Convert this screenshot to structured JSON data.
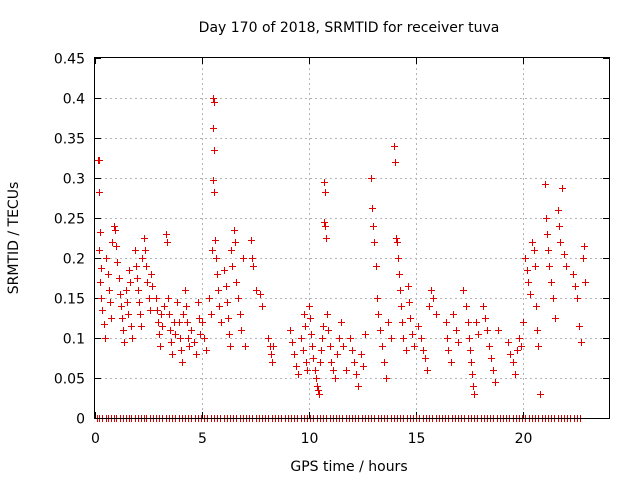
{
  "chart_data": {
    "type": "scatter",
    "title": "Day 170 of 2018, SRMTID for receiver tuva",
    "xlabel": "GPS time / hours",
    "ylabel": "SRMTID / TECUs",
    "xlim": [
      0,
      24
    ],
    "ylim": [
      0,
      0.45
    ],
    "xticks": [
      "0",
      "5",
      "10",
      "15",
      "20"
    ],
    "yticks": [
      "0",
      "0.05",
      "0.1",
      "0.15",
      "0.2",
      "0.25",
      "0.3",
      "0.35",
      "0.4",
      "0.45"
    ],
    "grid": true,
    "marker": "+",
    "color": "#e00000",
    "series": [
      {
        "points": [
          [
            0.15,
            0.323
          ],
          [
            0.2,
            0.323
          ],
          [
            0.2,
            0.282
          ],
          [
            0.25,
            0.232
          ],
          [
            0.2,
            0.21
          ],
          [
            0.3,
            0.188
          ],
          [
            0.25,
            0.17
          ],
          [
            0.3,
            0.15
          ],
          [
            0.35,
            0.135
          ],
          [
            0.4,
            0.118
          ],
          [
            0.45,
            0.1
          ],
          [
            0.5,
            0.2
          ],
          [
            0.6,
            0.18
          ],
          [
            0.65,
            0.16
          ],
          [
            0.7,
            0.145
          ],
          [
            0.75,
            0.125
          ],
          [
            0.8,
            0.22
          ],
          [
            0.9,
            0.24
          ],
          [
            0.95,
            0.235
          ],
          [
            1.0,
            0.215
          ],
          [
            1.05,
            0.195
          ],
          [
            1.1,
            0.175
          ],
          [
            1.15,
            0.155
          ],
          [
            1.2,
            0.14
          ],
          [
            1.25,
            0.125
          ],
          [
            1.3,
            0.11
          ],
          [
            1.35,
            0.095
          ],
          [
            1.45,
            0.16
          ],
          [
            1.5,
            0.145
          ],
          [
            1.55,
            0.13
          ],
          [
            1.6,
            0.185
          ],
          [
            1.65,
            0.17
          ],
          [
            1.7,
            0.115
          ],
          [
            1.75,
            0.1
          ],
          [
            1.85,
            0.21
          ],
          [
            1.9,
            0.19
          ],
          [
            1.95,
            0.175
          ],
          [
            2.0,
            0.16
          ],
          [
            2.05,
            0.145
          ],
          [
            2.1,
            0.13
          ],
          [
            2.15,
            0.115
          ],
          [
            2.2,
            0.2
          ],
          [
            2.3,
            0.225
          ],
          [
            2.35,
            0.21
          ],
          [
            2.4,
            0.19
          ],
          [
            2.45,
            0.17
          ],
          [
            2.5,
            0.15
          ],
          [
            2.55,
            0.135
          ],
          [
            2.6,
            0.18
          ],
          [
            2.65,
            0.165
          ],
          [
            2.85,
            0.15
          ],
          [
            2.9,
            0.135
          ],
          [
            2.95,
            0.12
          ],
          [
            3.0,
            0.105
          ],
          [
            3.05,
            0.09
          ],
          [
            3.1,
            0.13
          ],
          [
            3.15,
            0.115
          ],
          [
            3.2,
            0.14
          ],
          [
            3.3,
            0.23
          ],
          [
            3.35,
            0.22
          ],
          [
            3.4,
            0.15
          ],
          [
            3.45,
            0.13
          ],
          [
            3.5,
            0.11
          ],
          [
            3.55,
            0.095
          ],
          [
            3.6,
            0.08
          ],
          [
            3.7,
            0.12
          ],
          [
            3.75,
            0.105
          ],
          [
            3.85,
            0.145
          ],
          [
            3.9,
            0.12
          ],
          [
            3.95,
            0.1
          ],
          [
            4.0,
            0.085
          ],
          [
            4.05,
            0.07
          ],
          [
            4.1,
            0.13
          ],
          [
            4.2,
            0.16
          ],
          [
            4.25,
            0.14
          ],
          [
            4.3,
            0.12
          ],
          [
            4.35,
            0.1
          ],
          [
            4.4,
            0.09
          ],
          [
            4.5,
            0.11
          ],
          [
            4.6,
            0.095
          ],
          [
            4.7,
            0.08
          ],
          [
            4.8,
            0.145
          ],
          [
            4.85,
            0.125
          ],
          [
            4.9,
            0.105
          ],
          [
            5.0,
            0.12
          ],
          [
            5.1,
            0.1
          ],
          [
            5.2,
            0.085
          ],
          [
            5.3,
            0.15
          ],
          [
            5.4,
            0.13
          ],
          [
            5.45,
            0.21
          ],
          [
            5.5,
            0.4
          ],
          [
            5.55,
            0.395
          ],
          [
            5.5,
            0.362
          ],
          [
            5.55,
            0.335
          ],
          [
            5.5,
            0.298
          ],
          [
            5.55,
            0.283
          ],
          [
            5.6,
            0.222
          ],
          [
            5.65,
            0.2
          ],
          [
            5.7,
            0.18
          ],
          [
            5.75,
            0.16
          ],
          [
            5.8,
            0.14
          ],
          [
            5.9,
            0.12
          ],
          [
            6.0,
            0.185
          ],
          [
            6.1,
            0.165
          ],
          [
            6.15,
            0.145
          ],
          [
            6.2,
            0.125
          ],
          [
            6.25,
            0.105
          ],
          [
            6.3,
            0.09
          ],
          [
            6.35,
            0.21
          ],
          [
            6.4,
            0.19
          ],
          [
            6.5,
            0.235
          ],
          [
            6.55,
            0.22
          ],
          [
            6.6,
            0.17
          ],
          [
            6.7,
            0.15
          ],
          [
            6.75,
            0.13
          ],
          [
            6.8,
            0.11
          ],
          [
            6.9,
            0.2
          ],
          [
            7.0,
            0.09
          ],
          [
            7.3,
            0.222
          ],
          [
            7.35,
            0.2
          ],
          [
            7.4,
            0.19
          ],
          [
            7.5,
            0.16
          ],
          [
            7.7,
            0.155
          ],
          [
            7.8,
            0.14
          ],
          [
            8.1,
            0.1
          ],
          [
            8.15,
            0.09
          ],
          [
            8.2,
            0.08
          ],
          [
            8.25,
            0.07
          ],
          [
            8.3,
            0.09
          ],
          [
            9.1,
            0.11
          ],
          [
            9.2,
            0.095
          ],
          [
            9.3,
            0.08
          ],
          [
            9.4,
            0.065
          ],
          [
            9.5,
            0.055
          ],
          [
            9.6,
            0.1
          ],
          [
            9.7,
            0.085
          ],
          [
            9.75,
            0.13
          ],
          [
            9.8,
            0.115
          ],
          [
            9.85,
            0.07
          ],
          [
            9.9,
            0.06
          ],
          [
            10.0,
            0.14
          ],
          [
            10.05,
            0.125
          ],
          [
            10.1,
            0.105
          ],
          [
            10.15,
            0.09
          ],
          [
            10.2,
            0.075
          ],
          [
            10.25,
            0.06
          ],
          [
            10.3,
            0.05
          ],
          [
            10.35,
            0.04
          ],
          [
            10.4,
            0.035
          ],
          [
            10.45,
            0.03
          ],
          [
            10.5,
            0.07
          ],
          [
            10.55,
            0.085
          ],
          [
            10.6,
            0.1
          ],
          [
            10.65,
            0.115
          ],
          [
            10.7,
            0.295
          ],
          [
            10.75,
            0.283
          ],
          [
            10.7,
            0.245
          ],
          [
            10.75,
            0.24
          ],
          [
            10.8,
            0.225
          ],
          [
            10.85,
            0.13
          ],
          [
            10.9,
            0.11
          ],
          [
            10.95,
            0.09
          ],
          [
            11.0,
            0.07
          ],
          [
            11.1,
            0.06
          ],
          [
            11.2,
            0.05
          ],
          [
            11.3,
            0.08
          ],
          [
            11.4,
            0.1
          ],
          [
            11.5,
            0.12
          ],
          [
            11.6,
            0.09
          ],
          [
            11.7,
            0.06
          ],
          [
            11.9,
            0.1
          ],
          [
            12.0,
            0.085
          ],
          [
            12.1,
            0.07
          ],
          [
            12.2,
            0.055
          ],
          [
            12.3,
            0.04
          ],
          [
            12.4,
            0.08
          ],
          [
            12.5,
            0.065
          ],
          [
            12.6,
            0.105
          ],
          [
            12.9,
            0.3
          ],
          [
            12.95,
            0.262
          ],
          [
            13.0,
            0.24
          ],
          [
            13.05,
            0.22
          ],
          [
            13.1,
            0.19
          ],
          [
            13.15,
            0.15
          ],
          [
            13.2,
            0.13
          ],
          [
            13.3,
            0.11
          ],
          [
            13.4,
            0.09
          ],
          [
            13.5,
            0.07
          ],
          [
            13.6,
            0.05
          ],
          [
            13.7,
            0.12
          ],
          [
            13.8,
            0.1
          ],
          [
            13.95,
            0.34
          ],
          [
            14.0,
            0.32
          ],
          [
            14.05,
            0.225
          ],
          [
            14.1,
            0.22
          ],
          [
            14.15,
            0.2
          ],
          [
            14.2,
            0.18
          ],
          [
            14.25,
            0.16
          ],
          [
            14.3,
            0.14
          ],
          [
            14.35,
            0.12
          ],
          [
            14.4,
            0.1
          ],
          [
            14.5,
            0.085
          ],
          [
            14.6,
            0.165
          ],
          [
            14.65,
            0.145
          ],
          [
            14.7,
            0.125
          ],
          [
            14.8,
            0.105
          ],
          [
            14.9,
            0.09
          ],
          [
            15.1,
            0.115
          ],
          [
            15.2,
            0.1
          ],
          [
            15.3,
            0.085
          ],
          [
            15.4,
            0.075
          ],
          [
            15.5,
            0.06
          ],
          [
            15.6,
            0.14
          ],
          [
            15.7,
            0.16
          ],
          [
            15.8,
            0.15
          ],
          [
            15.9,
            0.13
          ],
          [
            16.4,
            0.12
          ],
          [
            16.45,
            0.1
          ],
          [
            16.5,
            0.085
          ],
          [
            16.6,
            0.07
          ],
          [
            16.7,
            0.13
          ],
          [
            16.85,
            0.11
          ],
          [
            16.95,
            0.095
          ],
          [
            17.2,
            0.16
          ],
          [
            17.3,
            0.14
          ],
          [
            17.4,
            0.12
          ],
          [
            17.45,
            0.1
          ],
          [
            17.5,
            0.085
          ],
          [
            17.55,
            0.07
          ],
          [
            17.6,
            0.055
          ],
          [
            17.65,
            0.04
          ],
          [
            17.7,
            0.03
          ],
          [
            17.8,
            0.12
          ],
          [
            17.9,
            0.105
          ],
          [
            18.1,
            0.14
          ],
          [
            18.2,
            0.125
          ],
          [
            18.3,
            0.11
          ],
          [
            18.4,
            0.09
          ],
          [
            18.5,
            0.075
          ],
          [
            18.6,
            0.06
          ],
          [
            18.7,
            0.045
          ],
          [
            18.8,
            0.11
          ],
          [
            19.3,
            0.095
          ],
          [
            19.4,
            0.08
          ],
          [
            19.5,
            0.07
          ],
          [
            19.6,
            0.055
          ],
          [
            19.7,
            0.085
          ],
          [
            19.8,
            0.1
          ],
          [
            19.9,
            0.09
          ],
          [
            20.0,
            0.12
          ],
          [
            20.1,
            0.2
          ],
          [
            20.15,
            0.185
          ],
          [
            20.2,
            0.17
          ],
          [
            20.3,
            0.155
          ],
          [
            20.4,
            0.22
          ],
          [
            20.5,
            0.21
          ],
          [
            20.55,
            0.19
          ],
          [
            20.6,
            0.14
          ],
          [
            20.65,
            0.11
          ],
          [
            20.7,
            0.09
          ],
          [
            20.8,
            0.03
          ],
          [
            21.0,
            0.293
          ],
          [
            21.05,
            0.25
          ],
          [
            21.1,
            0.23
          ],
          [
            21.15,
            0.21
          ],
          [
            21.2,
            0.19
          ],
          [
            21.3,
            0.17
          ],
          [
            21.4,
            0.15
          ],
          [
            21.5,
            0.125
          ],
          [
            21.6,
            0.26
          ],
          [
            21.65,
            0.24
          ],
          [
            21.7,
            0.22
          ],
          [
            21.8,
            0.288
          ],
          [
            21.9,
            0.205
          ],
          [
            22.0,
            0.19
          ],
          [
            22.3,
            0.18
          ],
          [
            22.4,
            0.165
          ],
          [
            22.5,
            0.15
          ],
          [
            22.6,
            0.115
          ],
          [
            22.7,
            0.095
          ],
          [
            22.8,
            0.2
          ],
          [
            22.85,
            0.215
          ],
          [
            22.9,
            0.17
          ]
        ]
      }
    ],
    "zero_points_x": [
      0.1,
      0.2,
      0.35,
      0.5,
      0.6,
      0.75,
      0.9,
      1.0,
      1.15,
      1.3,
      1.45,
      1.6,
      1.7,
      1.85,
      2.0,
      2.15,
      2.3,
      2.4,
      2.55,
      2.7,
      2.85,
      3.0,
      3.15,
      3.3,
      3.45,
      3.6,
      3.75,
      3.9,
      4.05,
      4.2,
      4.35,
      4.5,
      4.65,
      4.8,
      4.95,
      5.1,
      5.25,
      5.4,
      5.55,
      5.7,
      5.85,
      6.0,
      6.15,
      6.3,
      6.45,
      6.6,
      6.75,
      6.9,
      7.05,
      7.2,
      7.35,
      7.5,
      7.65,
      7.8,
      7.95,
      8.1,
      8.25,
      8.4,
      8.55,
      8.7,
      8.85,
      9.0,
      9.15,
      9.3,
      9.45,
      9.6,
      9.75,
      9.9,
      10.05,
      10.2,
      10.35,
      10.5,
      10.65,
      10.8,
      10.95,
      11.1,
      11.25,
      11.4,
      11.55,
      11.7,
      11.85,
      12.0,
      12.15,
      12.3,
      12.45,
      12.6,
      12.75,
      12.9,
      13.05,
      13.2,
      13.35,
      13.5,
      13.65,
      13.8,
      13.95,
      14.1,
      14.25,
      14.4,
      14.55,
      14.7,
      14.85,
      15.0,
      15.15,
      15.3,
      15.45,
      15.6,
      15.75,
      15.9,
      16.05,
      16.2,
      16.35,
      16.5,
      16.65,
      16.8,
      16.95,
      17.1,
      17.25,
      17.4,
      17.55,
      17.7,
      17.85,
      18.0,
      18.15,
      18.3,
      18.45,
      18.6,
      18.75,
      18.9,
      19.05,
      19.2,
      19.35,
      19.5,
      19.65,
      19.8,
      19.95,
      20.1,
      20.25,
      20.4,
      20.55,
      20.7,
      20.85,
      21.0,
      21.15,
      21.3,
      21.45,
      21.6,
      21.75,
      21.9,
      22.05,
      22.2,
      22.35,
      22.5,
      22.65
    ]
  }
}
